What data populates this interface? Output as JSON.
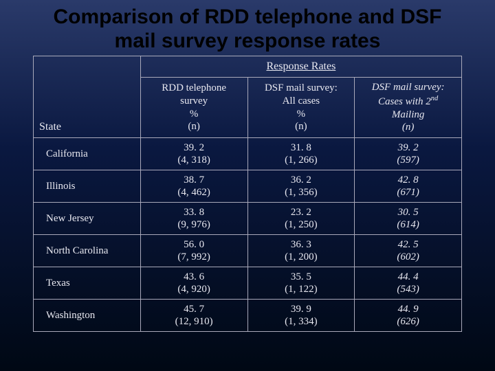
{
  "title": "Comparison of RDD telephone and DSF mail survey response rates",
  "table": {
    "response_rates_header": "Response Rates",
    "state_header": "State",
    "columns": [
      {
        "lines": [
          "RDD telephone",
          "survey",
          "%",
          "(n)"
        ],
        "italic": false
      },
      {
        "lines": [
          "DSF mail survey:",
          "All cases",
          "%",
          "(n)"
        ],
        "italic": false
      },
      {
        "lines": [
          "DSF mail survey:",
          "Cases with 2",
          "Mailing",
          "(n)"
        ],
        "italic": true,
        "sup": "nd",
        "sup_line": 1
      }
    ],
    "rows": [
      {
        "state": "California",
        "cells": [
          {
            "pct": "39. 2",
            "n": "(4, 318)"
          },
          {
            "pct": "31. 8",
            "n": "(1, 266)"
          },
          {
            "pct": "39. 2",
            "n": "(597)",
            "italic": true
          }
        ]
      },
      {
        "state": "Illinois",
        "cells": [
          {
            "pct": "38. 7",
            "n": "(4, 462)"
          },
          {
            "pct": "36. 2",
            "n": "(1, 356)"
          },
          {
            "pct": "42. 8",
            "n": "(671)",
            "italic": true
          }
        ]
      },
      {
        "state": "New Jersey",
        "cells": [
          {
            "pct": "33. 8",
            "n": "(9, 976)"
          },
          {
            "pct": "23. 2",
            "n": "(1, 250)"
          },
          {
            "pct": "30. 5",
            "n": "(614)",
            "italic": true
          }
        ]
      },
      {
        "state": "North Carolina",
        "cells": [
          {
            "pct": "56. 0",
            "n": "(7, 992)"
          },
          {
            "pct": "36. 3",
            "n": "(1, 200)"
          },
          {
            "pct": "42. 5",
            "n": "(602)",
            "italic": true
          }
        ]
      },
      {
        "state": "Texas",
        "cells": [
          {
            "pct": "43. 6",
            "n": "(4, 920)"
          },
          {
            "pct": "35. 5",
            "n": "(1, 122)"
          },
          {
            "pct": "44. 4",
            "n": "(543)",
            "italic": true
          }
        ]
      },
      {
        "state": "Washington",
        "cells": [
          {
            "pct": "45. 7",
            "n": "(12, 910)"
          },
          {
            "pct": "39. 9",
            "n": "(1, 334)"
          },
          {
            "pct": "44. 9",
            "n": "(626)",
            "italic": true
          }
        ]
      }
    ]
  },
  "colors": {
    "text": "#e8e8f0",
    "border": "#aab",
    "title": "#000000"
  }
}
